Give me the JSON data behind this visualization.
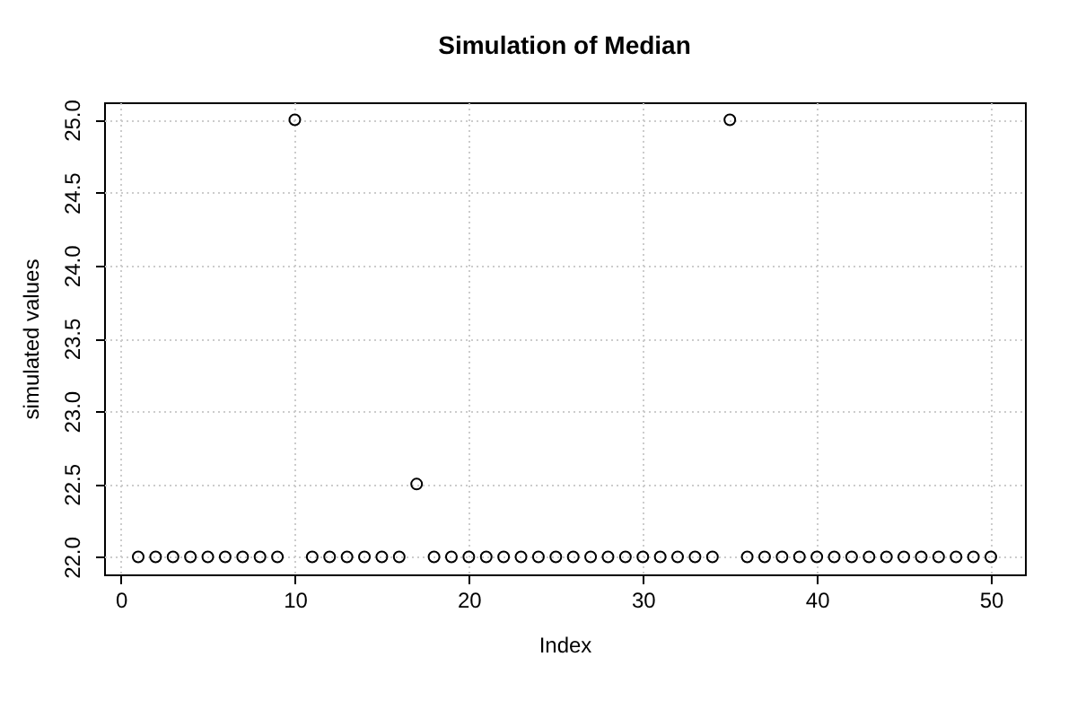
{
  "chart_data": {
    "type": "scatter",
    "title": "Simulation of Median",
    "xlabel": "Index",
    "ylabel": "simulated values",
    "x": [
      1,
      2,
      3,
      4,
      5,
      6,
      7,
      8,
      9,
      10,
      11,
      12,
      13,
      14,
      15,
      16,
      17,
      18,
      19,
      20,
      21,
      22,
      23,
      24,
      25,
      26,
      27,
      28,
      29,
      30,
      31,
      32,
      33,
      34,
      35,
      36,
      37,
      38,
      39,
      40,
      41,
      42,
      43,
      44,
      45,
      46,
      47,
      48,
      49,
      50
    ],
    "values": [
      22,
      22,
      22,
      22,
      22,
      22,
      22,
      22,
      22,
      25,
      22,
      22,
      22,
      22,
      22,
      22,
      22.5,
      22,
      22,
      22,
      22,
      22,
      22,
      22,
      22,
      22,
      22,
      22,
      22,
      22,
      22,
      22,
      22,
      22,
      25,
      22,
      22,
      22,
      22,
      22,
      22,
      22,
      22,
      22,
      22,
      22,
      22,
      22,
      22,
      22
    ],
    "color": "#000000",
    "marker": "circle",
    "grid": true,
    "xlim": [
      -0.96,
      51.96
    ],
    "xticks": [
      0,
      10,
      20,
      30,
      40,
      50
    ],
    "ylim": [
      21.88,
      25.12
    ],
    "yticks": [
      {
        "value": 22,
        "label": "22.0"
      },
      22.5,
      {
        "value": 23,
        "label": "23.0"
      },
      23.5,
      {
        "value": 24,
        "label": "24.0"
      },
      24.5,
      {
        "value": 25,
        "label": "25.0"
      }
    ]
  }
}
